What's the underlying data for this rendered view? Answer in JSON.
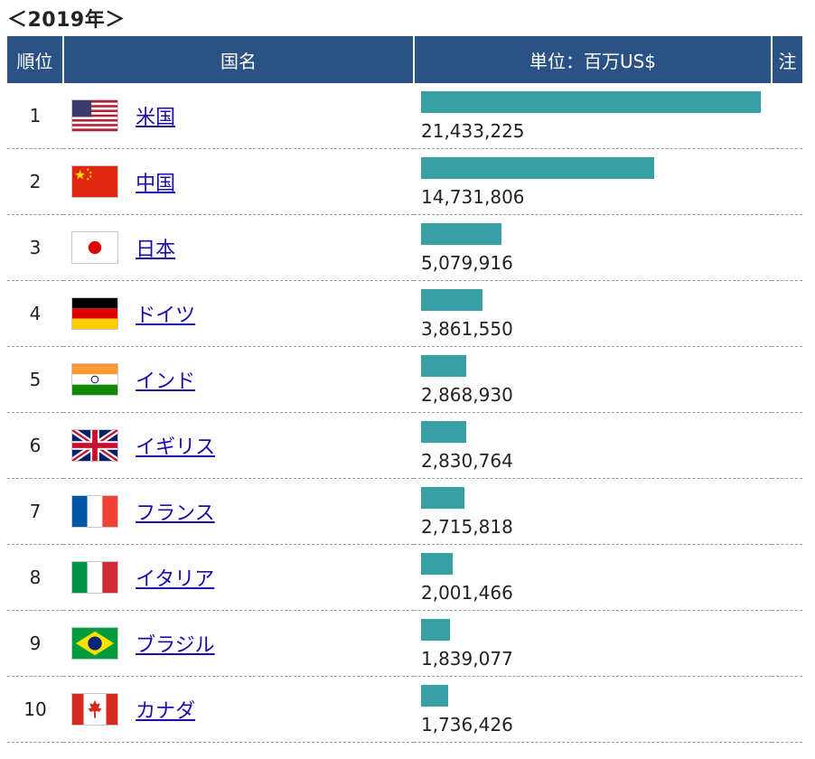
{
  "title": "＜2019年＞",
  "table": {
    "headers": {
      "rank": "順位",
      "country": "国名",
      "unit": "単位：百万US$",
      "note": "注"
    },
    "rows": [
      {
        "rank": "1",
        "country": "米国",
        "gdp": "21,433,225",
        "gdp_value": 21433225,
        "flag": "us-flag-icon"
      },
      {
        "rank": "2",
        "country": "中国",
        "gdp": "14,731,806",
        "gdp_value": 14731806,
        "flag": "china-flag-icon"
      },
      {
        "rank": "3",
        "country": "日本",
        "gdp": "5,079,916",
        "gdp_value": 5079916,
        "flag": "japan-flag-icon"
      },
      {
        "rank": "4",
        "country": "ドイツ",
        "gdp": "3,861,550",
        "gdp_value": 3861550,
        "flag": "germany-flag-icon"
      },
      {
        "rank": "5",
        "country": "インド",
        "gdp": "2,868,930",
        "gdp_value": 2868930,
        "flag": "india-flag-icon"
      },
      {
        "rank": "6",
        "country": "イギリス",
        "gdp": "2,830,764",
        "gdp_value": 2830764,
        "flag": "uk-flag-icon"
      },
      {
        "rank": "7",
        "country": "フランス",
        "gdp": "2,715,818",
        "gdp_value": 2715818,
        "flag": "france-flag-icon"
      },
      {
        "rank": "8",
        "country": "イタリア",
        "gdp": "2,001,466",
        "gdp_value": 2001466,
        "flag": "italy-flag-icon"
      },
      {
        "rank": "9",
        "country": "ブラジル",
        "gdp": "1,839,077",
        "gdp_value": 1839077,
        "flag": "brazil-flag-icon"
      },
      {
        "rank": "10",
        "country": "カナダ",
        "gdp": "1,736,426",
        "gdp_value": 1736426,
        "flag": "canada-flag-icon"
      }
    ]
  },
  "colors": {
    "header_bg": "#2b5284",
    "bar": "#36a0a5",
    "link": "#1a0dab"
  }
}
